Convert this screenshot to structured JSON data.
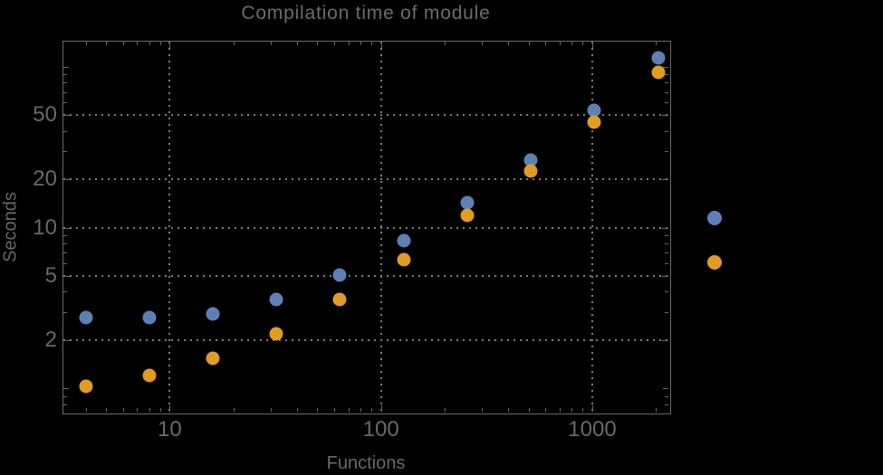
{
  "title": "Compilation time of module",
  "colors": {
    "background": "#000000",
    "frame": "#6a6a6a",
    "gridline": "#7d7d7d",
    "text": "#696969",
    "series_blue": "#5e81b5",
    "series_orange": "#e19c24"
  },
  "chart_data": {
    "type": "scatter",
    "title": "Compilation time of module",
    "xlabel": "Functions",
    "ylabel": "Seconds",
    "x_scale": "log10",
    "y_scale": "log10",
    "xlim": [
      3.1,
      2320
    ],
    "ylim": [
      0.71,
      146
    ],
    "grid": "dotted gridlines at labeled major ticks only",
    "legend_position": "outside right, markers only (no visible label text)",
    "x": [
      4,
      8,
      16,
      32,
      64,
      128,
      256,
      512,
      1024,
      2048
    ],
    "series": [
      {
        "name": "series-1-blue",
        "color": "#5e81b5",
        "values": [
          2.75,
          2.75,
          2.9,
          3.6,
          5.1,
          8.3,
          14.3,
          26.3,
          53.5,
          114
        ]
      },
      {
        "name": "series-2-orange",
        "color": "#e19c24",
        "values": [
          1.03,
          1.2,
          1.55,
          2.2,
          3.6,
          6.3,
          11.9,
          22.4,
          45.5,
          93
        ]
      }
    ],
    "x_ticks_labeled": [
      10,
      100,
      1000
    ],
    "x_ticks_minor": [
      4,
      5,
      6,
      7,
      8,
      9,
      20,
      30,
      40,
      50,
      60,
      70,
      80,
      90,
      200,
      300,
      400,
      500,
      600,
      700,
      800,
      900,
      2000
    ],
    "y_ticks_labeled": [
      2,
      5,
      10,
      20,
      50
    ],
    "y_ticks_unlabeled_major": [
      1,
      100
    ],
    "y_ticks_minor": [
      0.8,
      0.9,
      3,
      4,
      6,
      7,
      8,
      9,
      30,
      40,
      60,
      70,
      80,
      90
    ]
  },
  "legend": {
    "entries": [
      {
        "label": "",
        "color": "#5e81b5"
      },
      {
        "label": "",
        "color": "#e19c24"
      }
    ]
  }
}
